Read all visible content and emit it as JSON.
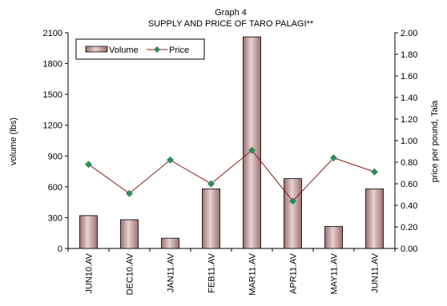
{
  "chart_data": {
    "type": "bar",
    "title": "Graph 4",
    "subtitle": "SUPPLY AND PRICE OF TARO PALAGI**",
    "categories": [
      "JUN10.AV",
      "DEC10.AV",
      "JAN11.AV",
      "FEB11.AV",
      "MAR11.AV",
      "APR11.AV",
      "MAY11.AV",
      "JUN11.AV"
    ],
    "ylabel": "volume (lbs)",
    "y2label": "price per pound, Tala",
    "ylim": [
      0,
      2100
    ],
    "y2lim": [
      0,
      2
    ],
    "yticks": [
      "0",
      "300",
      "600",
      "900",
      "1200",
      "1500",
      "1800",
      "2100"
    ],
    "y2ticks": [
      "0.00",
      "0.20",
      "0.40",
      "0.60",
      "0.80",
      "1.00",
      "1.20",
      "1.40",
      "1.60",
      "1.80",
      "2.00"
    ],
    "grid": false,
    "legend_placement": "top-left",
    "series": [
      {
        "name": "Volume",
        "type": "bar",
        "axis": "left",
        "color": "#c9a3a3",
        "values": [
          320,
          280,
          100,
          580,
          2060,
          680,
          215,
          580
        ]
      },
      {
        "name": "Price",
        "type": "line",
        "axis": "right",
        "color": "#8b1a1a",
        "marker_color": "#2e8b57",
        "values": [
          0.78,
          0.51,
          0.82,
          0.6,
          0.91,
          0.44,
          0.84,
          0.71
        ]
      }
    ]
  }
}
